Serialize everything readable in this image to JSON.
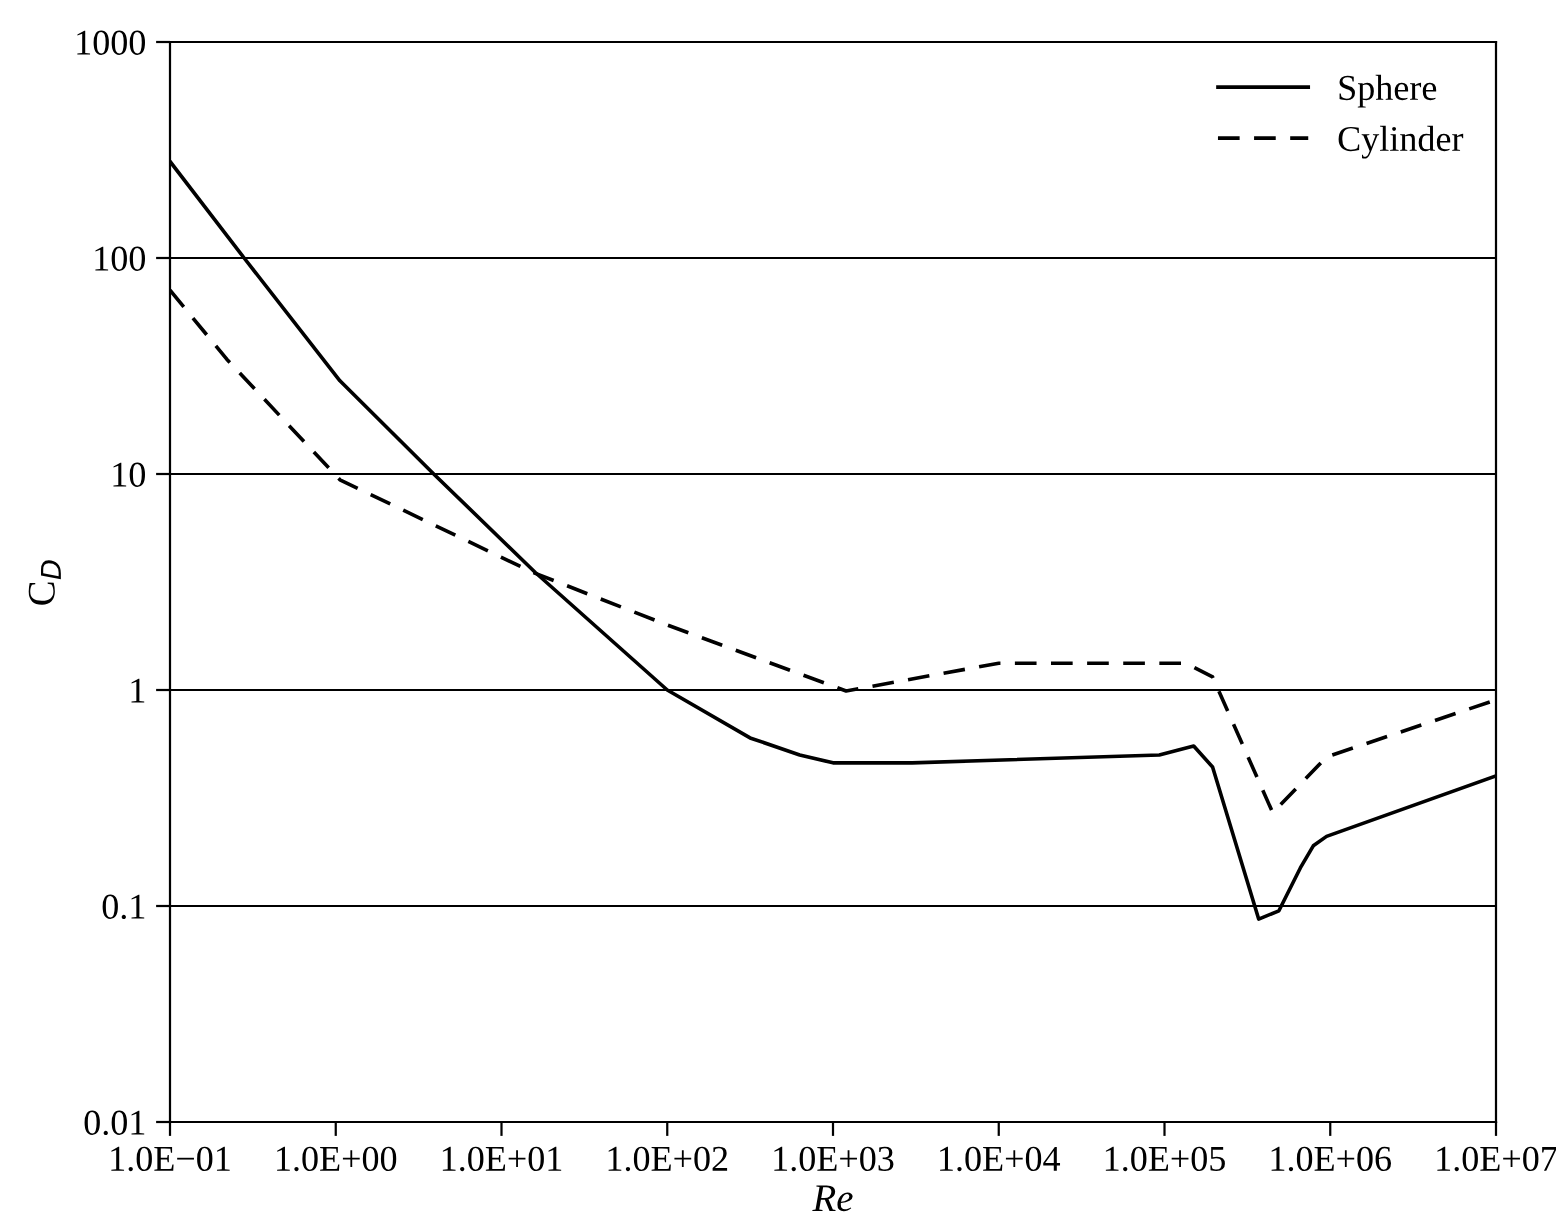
{
  "chart_data": {
    "type": "line",
    "xlabel": "Re",
    "ylabel": "C$_{D}$",
    "log": "xy",
    "grid": "y",
    "legend": "top right",
    "xlim": [
      0.1,
      10000000
    ],
    "ylim": [
      0.01,
      1000
    ],
    "xticks": [
      {
        "value": 0.1,
        "label": "1.0E−01"
      },
      {
        "value": 1,
        "label": "1.0E+00"
      },
      {
        "value": 10,
        "label": "1.0E+01"
      },
      {
        "value": 100,
        "label": "1.0E+02"
      },
      {
        "value": 1000,
        "label": "1.0E+03"
      },
      {
        "value": 10000,
        "label": "1.0E+04"
      },
      {
        "value": 100000,
        "label": "1.0E+05"
      },
      {
        "value": 1000000,
        "label": "1.0E+06"
      },
      {
        "value": 10000000,
        "label": "1.0E+07"
      }
    ],
    "yticks": [
      0.01,
      0.1,
      1,
      10,
      100,
      1000
    ],
    "series": [
      {
        "name": "Sphere",
        "color": "#000000",
        "line_style": "solid",
        "x": [
          0.1,
          0.28,
          1.06,
          3.9,
          16,
          100,
          316,
          630,
          1000,
          3000,
          93000,
          150000,
          195000,
          370000,
          490000,
          660000,
          790000,
          950000,
          10000000
        ],
        "values": [
          280,
          100,
          27,
          10,
          3.5,
          1.0,
          0.6,
          0.5,
          0.46,
          0.46,
          0.5,
          0.55,
          0.44,
          0.087,
          0.095,
          0.15,
          0.19,
          0.21,
          0.4
        ]
      },
      {
        "name": "Cylinder",
        "color": "#000000",
        "line_style": "dashed",
        "x": [
          0.1,
          0.22,
          1.06,
          15.5,
          100,
          1200,
          10000,
          135000,
          195000,
          450000,
          950000,
          10000000
        ],
        "values": [
          71,
          34,
          9.4,
          3.5,
          2.0,
          0.99,
          1.33,
          1.33,
          1.15,
          0.27,
          0.49,
          0.9
        ]
      }
    ]
  }
}
